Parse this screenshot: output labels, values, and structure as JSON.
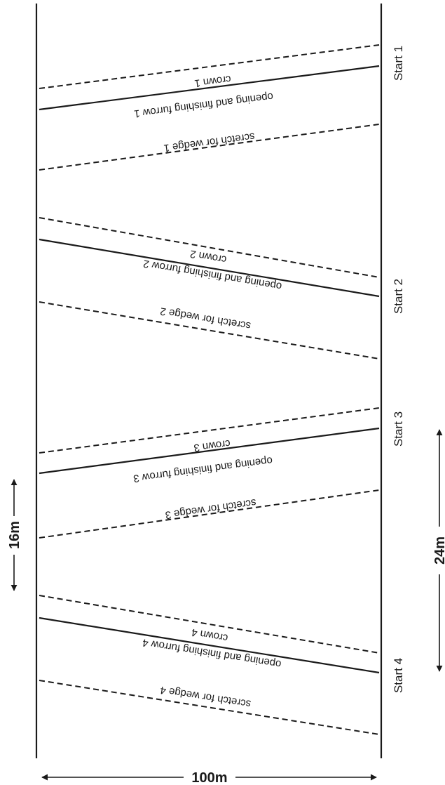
{
  "dimensions": {
    "width_label": "100m",
    "gap_label": "16m",
    "land_label": "24m"
  },
  "lands": [
    {
      "start_label": "Start 1",
      "crown_label": "crown 1",
      "furrow_label": "opening and finishing furrow 1",
      "scratch_label": "scretch for wedge 1"
    },
    {
      "start_label": "Start 2",
      "crown_label": "crown 2",
      "furrow_label": "opening and finishing furrow 2",
      "scratch_label": "scretch for wedge 2"
    },
    {
      "start_label": "Start 3",
      "crown_label": "crown 3",
      "furrow_label": "opening and finishing furrow 3",
      "scratch_label": "scretch for wedge 3"
    },
    {
      "start_label": "Start 4",
      "crown_label": "crown 4",
      "furrow_label": "opening and finishing furrow 4",
      "scratch_label": "scretch for wedge 4"
    }
  ]
}
